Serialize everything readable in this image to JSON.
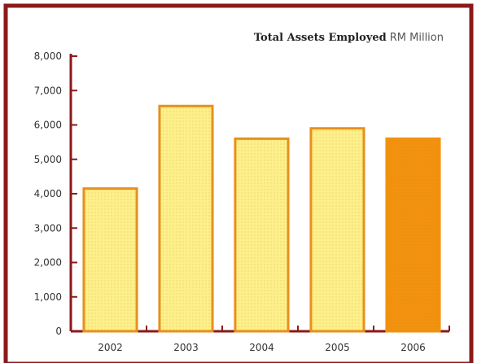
{
  "chart_data": {
    "type": "bar",
    "title": "Total Assets Employed",
    "title_unit": "RM Million",
    "categories": [
      "2002",
      "2003",
      "2004",
      "2005",
      "2006"
    ],
    "series": [
      {
        "values": [
          4150,
          6550,
          5600,
          5900,
          5600
        ]
      }
    ],
    "highlight_index": 4,
    "ylim": [
      0,
      8000
    ],
    "yticks": [
      "0",
      "1,000",
      "2,000",
      "3,000",
      "4,000",
      "5,000",
      "6,000",
      "7,000",
      "8,000"
    ],
    "grid": false,
    "colors": {
      "bar_fill": "#fdf08a",
      "bar_stroke": "#e8901c",
      "highlight_fill": "#f2920f",
      "axis": "#8b1a1a",
      "border": "#8b1a1a",
      "background": "#ffffff"
    }
  }
}
